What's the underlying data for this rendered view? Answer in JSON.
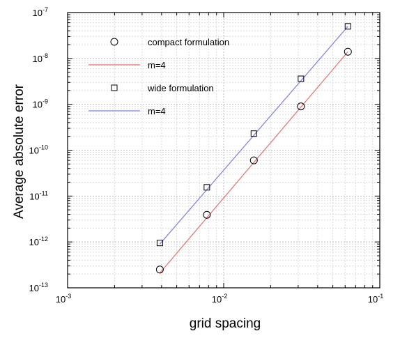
{
  "chart_data": {
    "type": "scatter",
    "xlabel": "grid spacing",
    "ylabel": "Average absolute error",
    "xscale": "log",
    "yscale": "log",
    "xlim": [
      0.001,
      0.1
    ],
    "ylim": [
      1e-13,
      1e-07
    ],
    "grid": true,
    "legend_position": "top-left",
    "x_ticks": [
      {
        "base": "10",
        "exp": "-3",
        "value": 0.001
      },
      {
        "base": "10",
        "exp": "-2",
        "value": 0.01
      },
      {
        "base": "10",
        "exp": "-1",
        "value": 0.1
      }
    ],
    "y_ticks": [
      {
        "base": "10",
        "exp": "-13",
        "value": 1e-13
      },
      {
        "base": "10",
        "exp": "-12",
        "value": 1e-12
      },
      {
        "base": "10",
        "exp": "-11",
        "value": 1e-11
      },
      {
        "base": "10",
        "exp": "-10",
        "value": 1e-10
      },
      {
        "base": "10",
        "exp": "-9",
        "value": 1e-09
      },
      {
        "base": "10",
        "exp": "-8",
        "value": 1e-08
      },
      {
        "base": "10",
        "exp": "-7",
        "value": 1e-07
      }
    ],
    "series": [
      {
        "name": "compact formulation",
        "kind": "scatter",
        "marker": "circle",
        "color": "#000000",
        "x": [
          0.0039,
          0.0078,
          0.0156,
          0.03125,
          0.0625
        ],
        "y": [
          2.5e-13,
          3.9e-12,
          6e-11,
          9e-10,
          1.4e-08
        ]
      },
      {
        "name": "m=4",
        "kind": "line",
        "color": "#e8706e",
        "x": [
          0.0039,
          0.0625
        ],
        "y": [
          2.1e-13,
          1.4e-08
        ]
      },
      {
        "name": "wide formulation",
        "kind": "scatter",
        "marker": "square",
        "color": "#000000",
        "x": [
          0.0039,
          0.0078,
          0.0156,
          0.03125,
          0.0625
        ],
        "y": [
          9.5e-13,
          1.55e-11,
          2.3e-10,
          3.6e-09,
          5e-08
        ]
      },
      {
        "name": "m=4",
        "kind": "line",
        "color": "#7d7fe8",
        "x": [
          0.0039,
          0.0625
        ],
        "y": [
          9e-13,
          5e-08
        ]
      }
    ]
  }
}
